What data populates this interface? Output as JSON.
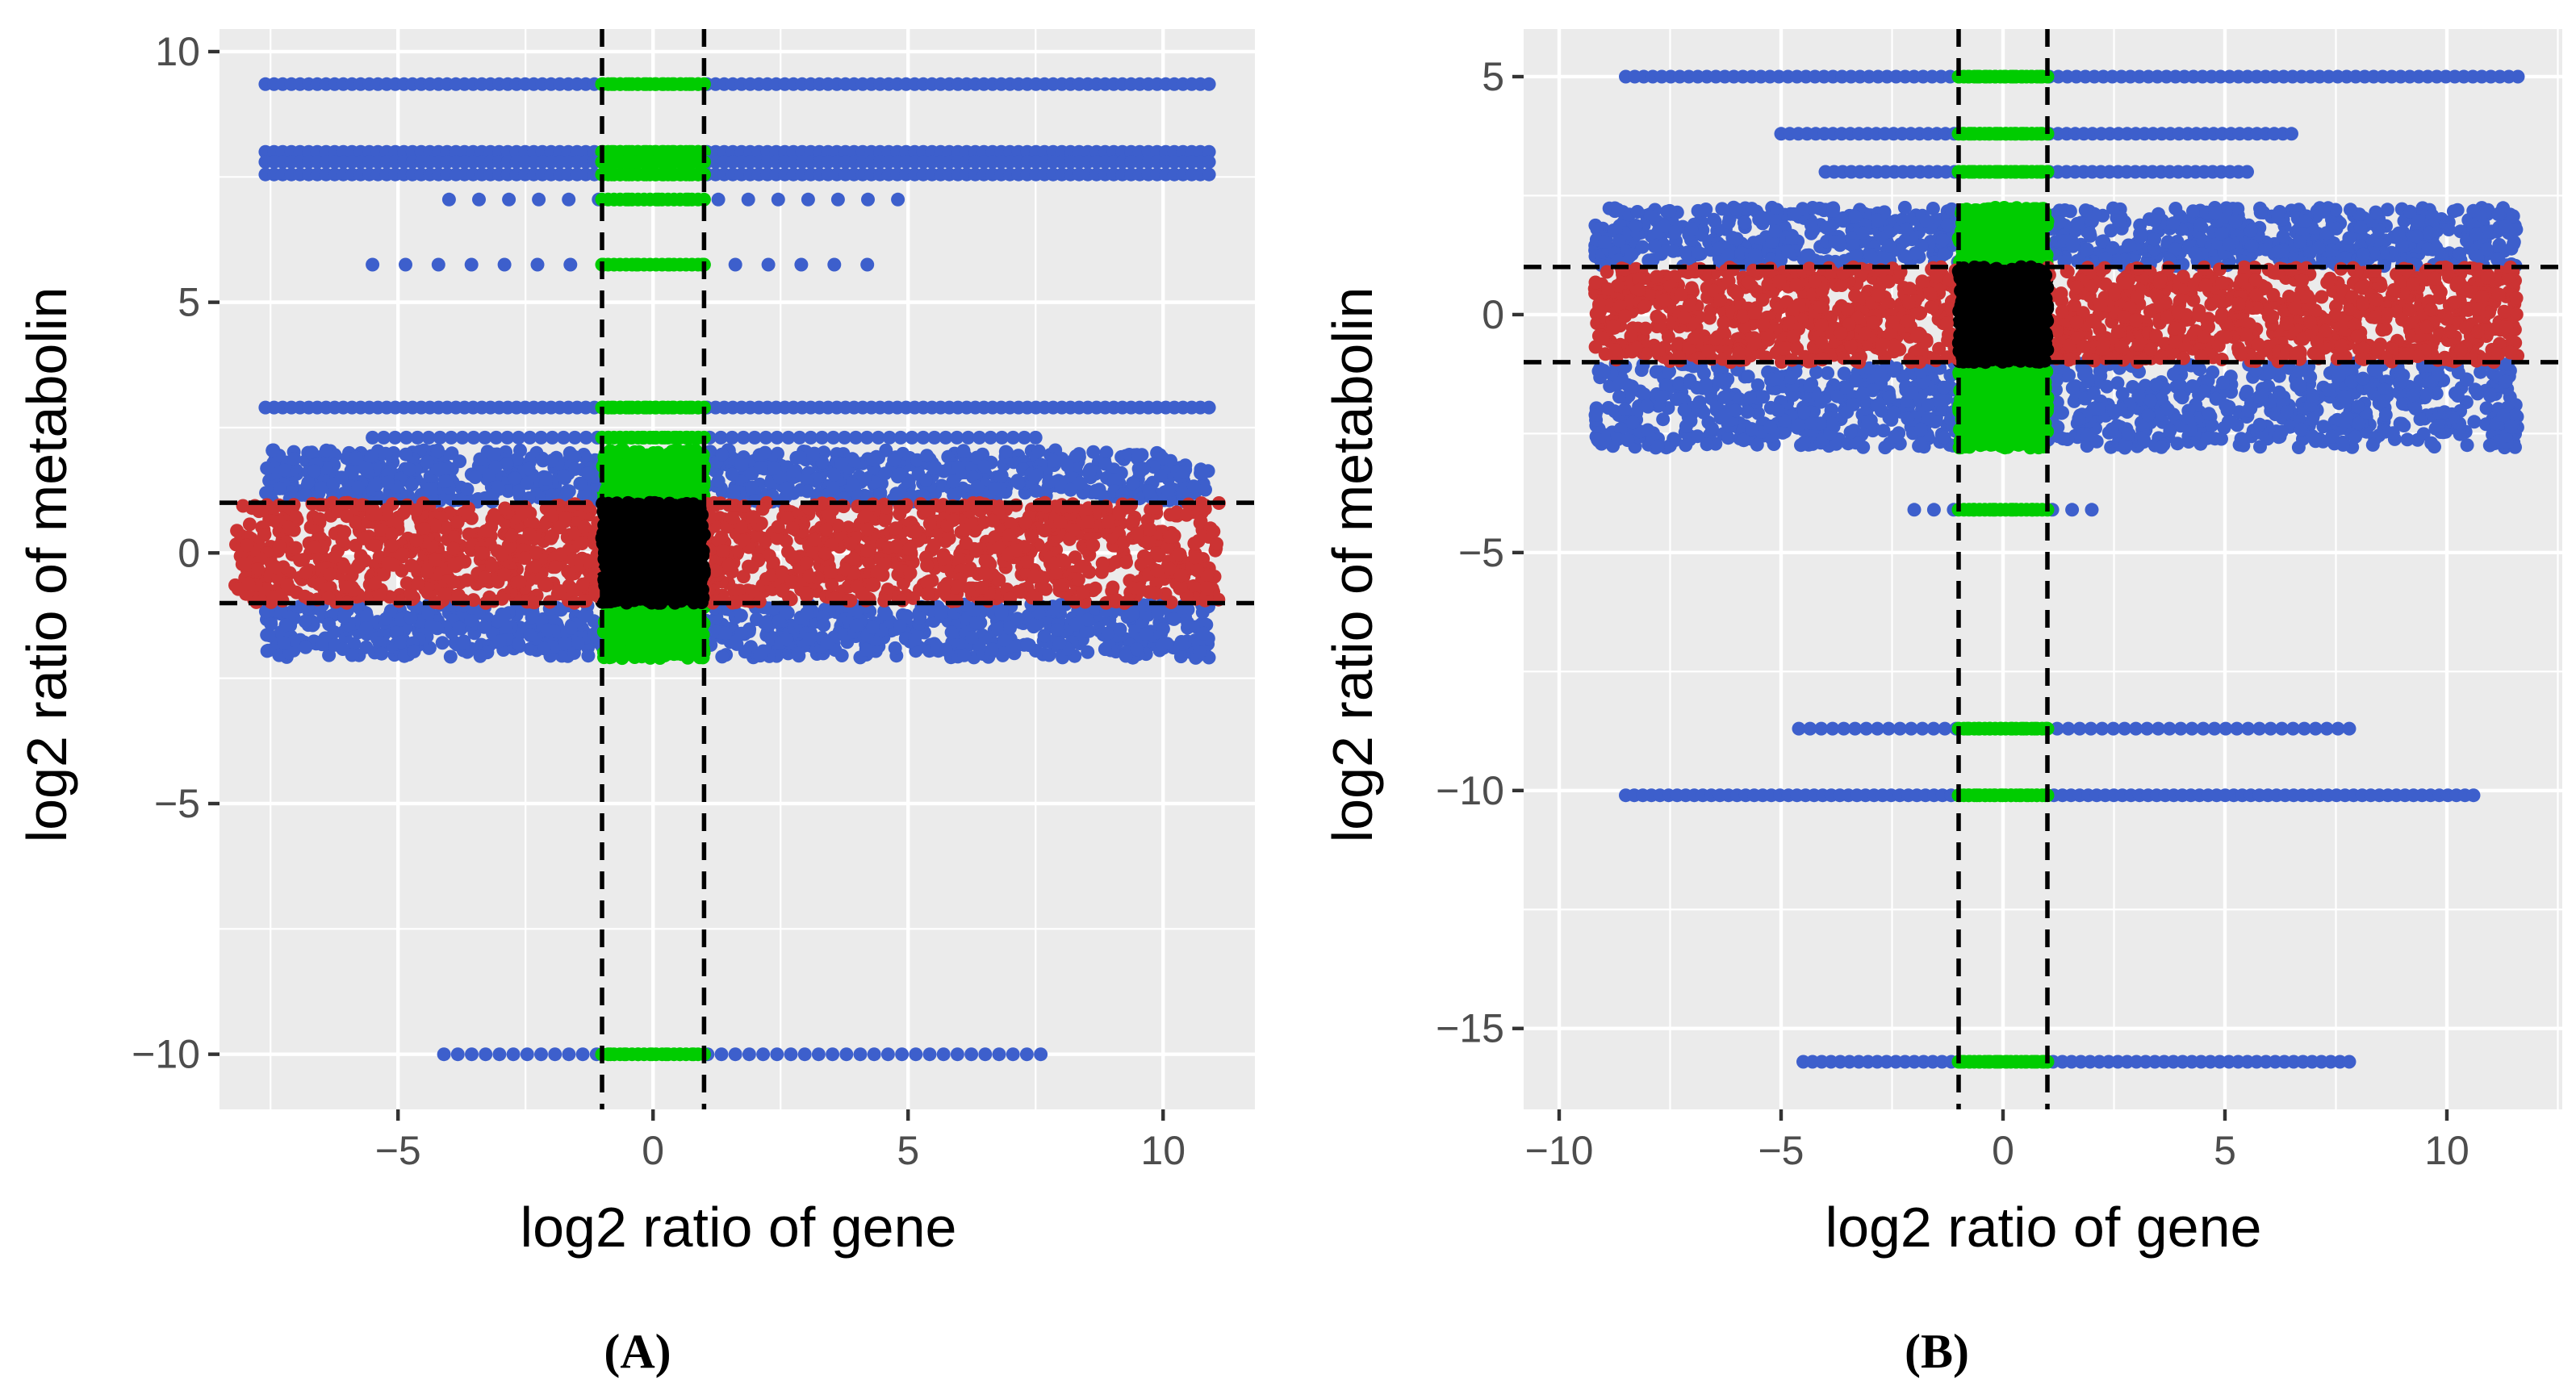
{
  "chart_data": [
    {
      "panel": "A",
      "type": "scatter",
      "panel_label": "(A)",
      "xlabel": "log2 ratio of gene",
      "ylabel": "log2 ratio of metabolin",
      "xlim": [
        -8.5,
        11.8
      ],
      "ylim": [
        -11.1,
        10.45
      ],
      "xticks": [
        -5,
        0,
        5,
        10
      ],
      "yticks": [
        -10,
        -5,
        0,
        5,
        10
      ],
      "xtick_labels": [
        "−5",
        "0",
        "5",
        "10"
      ],
      "ytick_labels": [
        "−10",
        "−5",
        "0",
        "5",
        "10"
      ],
      "thresholds": {
        "x": [
          -1,
          1
        ],
        "y": [
          -1,
          1
        ]
      },
      "colors": {
        "blue": "#3d5fcc",
        "red": "#cc3333",
        "green": "#00cc00",
        "black": "#000000"
      },
      "bands": [
        {
          "y": 9.35,
          "x_min": -7.6,
          "x_max": 10.9,
          "n": 110
        },
        {
          "y": 8.0,
          "x_min": -7.6,
          "x_max": 10.9,
          "n": 110
        },
        {
          "y": 7.8,
          "x_min": -7.6,
          "x_max": 10.9,
          "n": 110
        },
        {
          "y": 7.55,
          "x_min": -7.6,
          "x_max": 10.9,
          "n": 110
        },
        {
          "y": 7.05,
          "x_min": -4.0,
          "x_max": 4.8,
          "n": 16
        },
        {
          "y": 5.75,
          "x_min": -5.5,
          "x_max": 4.2,
          "n": 16
        },
        {
          "y": 2.9,
          "x_min": -7.6,
          "x_max": 10.9,
          "n": 110
        },
        {
          "y": 2.3,
          "x_min": -5.5,
          "x_max": 7.5,
          "n": 60
        },
        {
          "y": -10.0,
          "x_min": -4.1,
          "x_max": 7.6,
          "n": 44
        }
      ],
      "clouds": [
        {
          "y_min": 1.02,
          "y_max": 2.05,
          "x_min": -7.6,
          "x_max": 10.9,
          "n": 900
        },
        {
          "y_min": -2.1,
          "y_max": -1.02,
          "x_min": -7.6,
          "x_max": 10.9,
          "n": 900
        },
        {
          "y_min": -1.0,
          "y_max": 1.0,
          "x_min": -8.2,
          "x_max": 11.1,
          "n": 1600
        }
      ]
    },
    {
      "panel": "B",
      "type": "scatter",
      "panel_label": "(B)",
      "xlabel": "log2 ratio of gene",
      "ylabel": "log2 ratio of metabolin",
      "xlim": [
        -10.8,
        12.6
      ],
      "ylim": [
        -16.7,
        6.0
      ],
      "xticks": [
        -10,
        -5,
        0,
        5,
        10
      ],
      "yticks": [
        -15,
        -10,
        -5,
        0,
        5
      ],
      "xtick_labels": [
        "−10",
        "−5",
        "0",
        "5",
        "10"
      ],
      "ytick_labels": [
        "−15",
        "−10",
        "−5",
        "0",
        "5"
      ],
      "thresholds": {
        "x": [
          -1,
          1
        ],
        "y": [
          -1,
          1
        ]
      },
      "colors": {
        "blue": "#3d5fcc",
        "red": "#cc3333",
        "green": "#00cc00",
        "black": "#000000"
      },
      "bands": [
        {
          "y": 5.0,
          "x_min": -8.5,
          "x_max": 11.6,
          "n": 100
        },
        {
          "y": 3.8,
          "x_min": -5.0,
          "x_max": 6.5,
          "n": 60
        },
        {
          "y": 3.0,
          "x_min": -4.0,
          "x_max": 5.5,
          "n": 50
        },
        {
          "y": -4.1,
          "x_min": -2.0,
          "x_max": 2.0,
          "n": 10
        },
        {
          "y": -8.7,
          "x_min": -4.6,
          "x_max": 7.8,
          "n": 50
        },
        {
          "y": -10.1,
          "x_min": -8.5,
          "x_max": 10.6,
          "n": 100
        },
        {
          "y": -15.7,
          "x_min": -4.5,
          "x_max": 7.8,
          "n": 60
        }
      ],
      "clouds": [
        {
          "y_min": 1.02,
          "y_max": 2.25,
          "x_min": -9.2,
          "x_max": 11.6,
          "n": 1000
        },
        {
          "y_min": -2.8,
          "y_max": -1.02,
          "x_min": -9.2,
          "x_max": 11.6,
          "n": 1100
        },
        {
          "y_min": -1.0,
          "y_max": 1.0,
          "x_min": -9.2,
          "x_max": 11.6,
          "n": 1600
        }
      ]
    }
  ]
}
